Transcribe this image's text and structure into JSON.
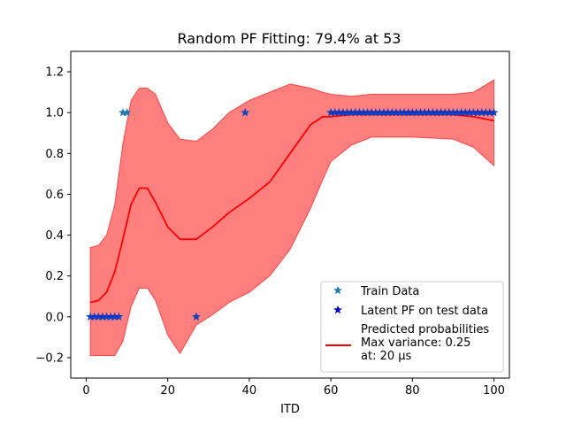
{
  "chart_data": {
    "type": "scatter",
    "title": "Random PF Fitting: 79.4% at 53",
    "xlabel": "ITD",
    "ylabel": "",
    "xlim": [
      -3.8,
      103.8
    ],
    "ylim": [
      -0.3,
      1.3
    ],
    "xticks": [
      0,
      20,
      40,
      60,
      80,
      100
    ],
    "yticks": [
      -0.2,
      0.0,
      0.2,
      0.4,
      0.6,
      0.8,
      1.0,
      1.2
    ],
    "ytick_labels": [
      "−0.2",
      "0.0",
      "0.2",
      "0.4",
      "0.6",
      "0.8",
      "1.0",
      "1.2"
    ],
    "grid": false,
    "legend_position": "lower-right",
    "colors": {
      "train": "#1f77b4",
      "latent": "#0000cc",
      "mean": "#ff0000",
      "band": "#ff0000",
      "overlap": "#6a4a86"
    },
    "series": [
      {
        "name": "Train Data",
        "kind": "scatter",
        "marker": "star",
        "points": [
          [
            1,
            0
          ],
          [
            2,
            0
          ],
          [
            3,
            0
          ],
          [
            4,
            0
          ],
          [
            5,
            0
          ],
          [
            6,
            0
          ],
          [
            7,
            0
          ],
          [
            8,
            0
          ],
          [
            9,
            1
          ],
          [
            10,
            1
          ],
          [
            27,
            0
          ],
          [
            39,
            1
          ],
          [
            60,
            1
          ],
          [
            61,
            1
          ],
          [
            62,
            1
          ],
          [
            63,
            1
          ],
          [
            64,
            1
          ],
          [
            65,
            1
          ],
          [
            66,
            1
          ],
          [
            67,
            1
          ],
          [
            68,
            1
          ],
          [
            69,
            1
          ],
          [
            70,
            1
          ],
          [
            71,
            1
          ],
          [
            72,
            1
          ],
          [
            73,
            1
          ],
          [
            74,
            1
          ],
          [
            75,
            1
          ],
          [
            76,
            1
          ],
          [
            77,
            1
          ],
          [
            78,
            1
          ],
          [
            79,
            1
          ],
          [
            80,
            1
          ],
          [
            81,
            1
          ],
          [
            82,
            1
          ],
          [
            83,
            1
          ],
          [
            84,
            1
          ],
          [
            85,
            1
          ],
          [
            86,
            1
          ],
          [
            87,
            1
          ],
          [
            88,
            1
          ],
          [
            89,
            1
          ],
          [
            90,
            1
          ],
          [
            91,
            1
          ],
          [
            92,
            1
          ],
          [
            93,
            1
          ],
          [
            94,
            1
          ],
          [
            95,
            1
          ],
          [
            96,
            1
          ],
          [
            97,
            1
          ],
          [
            98,
            1
          ],
          [
            99,
            1
          ],
          [
            100,
            1
          ]
        ]
      },
      {
        "name": "Latent PF on test data",
        "kind": "scatter",
        "marker": "star",
        "points": [
          [
            1,
            0
          ],
          [
            2,
            0
          ],
          [
            3,
            0
          ],
          [
            4,
            0
          ],
          [
            5,
            0
          ],
          [
            6,
            0
          ],
          [
            7,
            0
          ],
          [
            8,
            0
          ],
          [
            27,
            0
          ],
          [
            39,
            1
          ],
          [
            60,
            1
          ],
          [
            61,
            1
          ],
          [
            62,
            1
          ],
          [
            63,
            1
          ],
          [
            64,
            1
          ],
          [
            65,
            1
          ],
          [
            66,
            1
          ],
          [
            67,
            1
          ],
          [
            68,
            1
          ],
          [
            69,
            1
          ],
          [
            70,
            1
          ],
          [
            71,
            1
          ],
          [
            72,
            1
          ],
          [
            73,
            1
          ],
          [
            74,
            1
          ],
          [
            75,
            1
          ],
          [
            76,
            1
          ],
          [
            77,
            1
          ],
          [
            78,
            1
          ],
          [
            79,
            1
          ],
          [
            80,
            1
          ],
          [
            81,
            1
          ],
          [
            82,
            1
          ],
          [
            83,
            1
          ],
          [
            84,
            1
          ],
          [
            85,
            1
          ],
          [
            86,
            1
          ],
          [
            87,
            1
          ],
          [
            88,
            1
          ],
          [
            89,
            1
          ],
          [
            90,
            1
          ],
          [
            91,
            1
          ],
          [
            92,
            1
          ],
          [
            93,
            1
          ],
          [
            94,
            1
          ],
          [
            95,
            1
          ],
          [
            96,
            1
          ],
          [
            97,
            1
          ],
          [
            98,
            1
          ],
          [
            99,
            1
          ],
          [
            100,
            1
          ]
        ]
      },
      {
        "name": "Predicted probabilities",
        "kind": "line",
        "x": [
          1,
          3,
          5,
          7,
          9,
          11,
          13,
          15,
          17,
          20,
          23,
          27,
          31,
          35,
          40,
          45,
          50,
          55,
          58,
          60,
          65,
          70,
          80,
          90,
          95,
          100
        ],
        "y": [
          0.07,
          0.08,
          0.12,
          0.22,
          0.38,
          0.55,
          0.63,
          0.63,
          0.56,
          0.44,
          0.38,
          0.38,
          0.44,
          0.51,
          0.58,
          0.66,
          0.8,
          0.94,
          0.98,
          0.98,
          0.99,
          0.99,
          0.99,
          0.99,
          0.98,
          0.96
        ]
      },
      {
        "name": "variance band",
        "kind": "band",
        "x": [
          1,
          3,
          5,
          7,
          9,
          11,
          13,
          15,
          17,
          20,
          23,
          27,
          31,
          35,
          40,
          45,
          50,
          55,
          58,
          60,
          65,
          70,
          80,
          90,
          95,
          100
        ],
        "upper": [
          0.34,
          0.35,
          0.4,
          0.55,
          0.85,
          1.06,
          1.12,
          1.12,
          1.09,
          0.95,
          0.87,
          0.86,
          0.92,
          1.0,
          1.06,
          1.1,
          1.14,
          1.12,
          1.1,
          1.09,
          1.08,
          1.09,
          1.09,
          1.09,
          1.1,
          1.16
        ],
        "lower": [
          -0.19,
          -0.19,
          -0.19,
          -0.19,
          -0.12,
          0.05,
          0.14,
          0.14,
          0.08,
          -0.09,
          -0.18,
          -0.04,
          0.01,
          0.07,
          0.12,
          0.2,
          0.33,
          0.53,
          0.67,
          0.76,
          0.84,
          0.88,
          0.88,
          0.87,
          0.83,
          0.74
        ]
      }
    ],
    "legend": {
      "train_label": "Train Data",
      "latent_label": "Latent PF on test data",
      "pred_label_1": "Predicted probabilities",
      "pred_label_2": "Max variance: 0.25",
      "pred_label_3": "at: 20 μs"
    }
  }
}
